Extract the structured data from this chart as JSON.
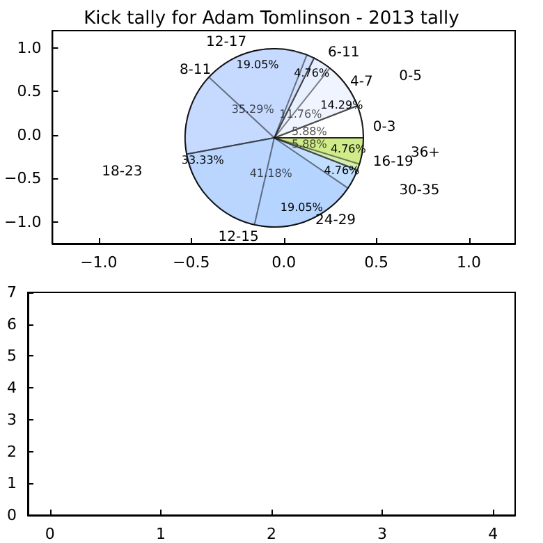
{
  "chart_data": [
    {
      "type": "pie",
      "title": "Kick tally for Adam Tomlinson - 2013 tally",
      "categories": [
        "0-3",
        "4-7",
        "8-11",
        "12-15",
        "16-19"
      ],
      "values": [
        5.88,
        11.76,
        35.29,
        41.18,
        5.88
      ],
      "value_labels": [
        "5.88%",
        "11.76%",
        "35.29%",
        "41.18%",
        "5.88%"
      ],
      "colors": [
        "#ffffff",
        "#e8f0ff",
        "#c6d9fe",
        "#b5d5ff",
        "#d0eb8a"
      ]
    },
    {
      "type": "pie",
      "categories": [
        "0-5",
        "6-11",
        "12-17",
        "18-23",
        "24-29",
        "30-35",
        "36+"
      ],
      "values": [
        14.29,
        4.76,
        19.05,
        33.33,
        19.05,
        4.76,
        4.76
      ],
      "value_labels": [
        "14.29%",
        "4.76%",
        "19.05%",
        "33.33%",
        "19.05%",
        "4.76%",
        "4.76%"
      ],
      "colors": [
        "#ffffff",
        "#e8f0ff",
        "#c6d9fe",
        "#c6d9fe",
        "#b5d5ff",
        "#ddf5ff",
        "#d0eb8a"
      ]
    },
    {
      "type": "scatter",
      "xlim": [
        -1.25,
        1.25
      ],
      "xticks": [
        {
          "value": -1,
          "label": "−1.0"
        },
        {
          "value": -0.5,
          "label": "−0.5"
        },
        {
          "value": 0,
          "label": "0.0"
        },
        {
          "value": 0.5,
          "label": "0.5"
        },
        {
          "value": 1,
          "label": "1.0"
        }
      ],
      "ylim": [
        -1.25,
        1.2
      ],
      "yticks": [
        {
          "value": -1,
          "label": "−1.0"
        },
        {
          "value": -0.5,
          "label": "−0.5"
        },
        {
          "value": 0,
          "label": "0.0"
        },
        {
          "value": 0.5,
          "label": "0.5"
        },
        {
          "value": 1,
          "label": "1.0"
        }
      ]
    },
    {
      "type": "scatter",
      "xlim": [
        -0.2,
        4.2
      ],
      "xticks": [
        0,
        1,
        2,
        3,
        4
      ],
      "ylim": [
        0,
        7
      ],
      "yticks": [
        0,
        1,
        2,
        3,
        4,
        5,
        6,
        7
      ]
    }
  ]
}
